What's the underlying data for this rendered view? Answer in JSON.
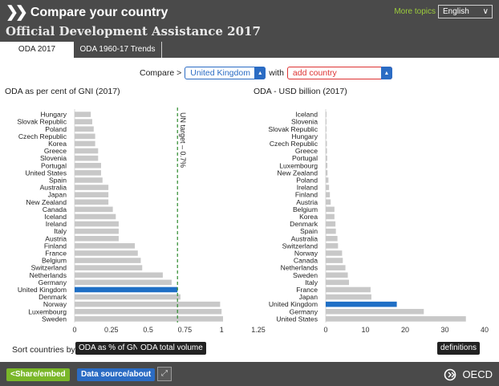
{
  "header": {
    "title": "Compare your country",
    "subtitle": "Official Development Assistance 2017",
    "more_topics": "More topics",
    "language": "English"
  },
  "tabs": [
    {
      "label": "ODA 2017",
      "active": true
    },
    {
      "label": "ODA 1960-17 Trends",
      "active": false
    }
  ],
  "compare": {
    "label": "Compare >",
    "country": "United Kingdom",
    "with": "with",
    "add_country": "add country"
  },
  "colors": {
    "bar": "#c8c8c8",
    "highlight": "#1f6fc5",
    "target_line": "#2e8b2e"
  },
  "chart_data": [
    {
      "type": "bar",
      "orientation": "horizontal",
      "title": "ODA as per cent of GNI (2017)",
      "categories": [
        "Hungary",
        "Slovak Republic",
        "Poland",
        "Czech Republic",
        "Korea",
        "Greece",
        "Slovenia",
        "Portugal",
        "United States",
        "Spain",
        "Australia",
        "Japan",
        "New Zealand",
        "Canada",
        "Iceland",
        "Ireland",
        "Italy",
        "Austria",
        "Finland",
        "France",
        "Belgium",
        "Switzerland",
        "Netherlands",
        "Germany",
        "United Kingdom",
        "Denmark",
        "Norway",
        "Luxembourg",
        "Sweden"
      ],
      "values": [
        0.11,
        0.12,
        0.13,
        0.14,
        0.14,
        0.16,
        0.16,
        0.18,
        0.18,
        0.19,
        0.23,
        0.23,
        0.23,
        0.26,
        0.28,
        0.3,
        0.3,
        0.3,
        0.41,
        0.43,
        0.45,
        0.46,
        0.6,
        0.66,
        0.7,
        0.72,
        0.99,
        1.0,
        1.01
      ],
      "highlight": "United Kingdom",
      "xlim": [
        0,
        1.25
      ],
      "xticks": [
        "0",
        "0.25",
        "0.5",
        "0.75",
        "1",
        "1.25"
      ],
      "reference_line": {
        "value": 0.7,
        "label": "UN target – 0.7%"
      }
    },
    {
      "type": "bar",
      "orientation": "horizontal",
      "title": "ODA - USD billion (2017)",
      "categories": [
        "Iceland",
        "Slovenia",
        "Slovak Republic",
        "Hungary",
        "Czech Republic",
        "Greece",
        "Portugal",
        "Luxembourg",
        "New Zealand",
        "Poland",
        "Ireland",
        "Finland",
        "Austria",
        "Belgium",
        "Korea",
        "Denmark",
        "Spain",
        "Australia",
        "Switzerland",
        "Norway",
        "Canada",
        "Netherlands",
        "Sweden",
        "Italy",
        "France",
        "Japan",
        "United Kingdom",
        "Germany",
        "United States"
      ],
      "values": [
        0.06,
        0.08,
        0.11,
        0.15,
        0.3,
        0.32,
        0.38,
        0.42,
        0.45,
        0.68,
        0.84,
        1.05,
        1.25,
        2.2,
        2.2,
        2.45,
        2.56,
        2.96,
        3.1,
        4.12,
        4.3,
        4.96,
        5.56,
        5.86,
        11.3,
        11.5,
        17.9,
        24.7,
        35.3
      ],
      "highlight": "United Kingdom",
      "xlim": [
        0,
        40
      ],
      "xticks": [
        "0",
        "10",
        "20",
        "30",
        "40"
      ]
    }
  ],
  "sort": {
    "label": "Sort countries by",
    "option_pct": "ODA as % of GNI",
    "option_total": "ODA total volume",
    "definitions": "definitions"
  },
  "footer": {
    "share": "Share/embed",
    "source": "Data source/about",
    "brand": "OECD"
  }
}
